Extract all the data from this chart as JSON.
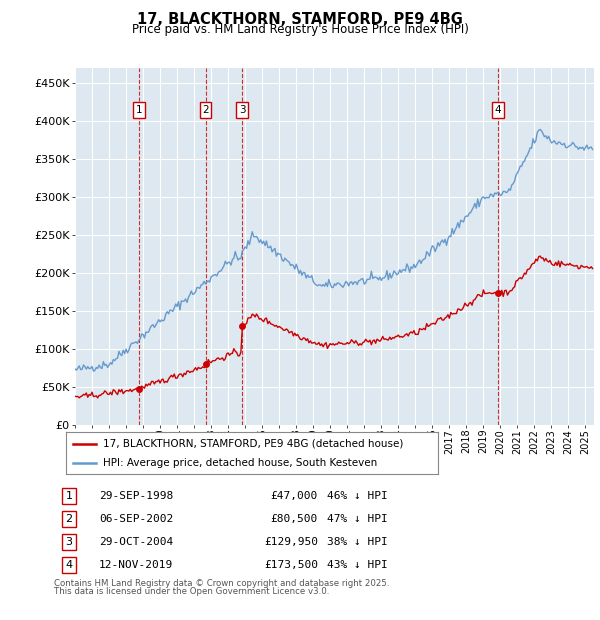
{
  "title": "17, BLACKTHORN, STAMFORD, PE9 4BG",
  "subtitle": "Price paid vs. HM Land Registry's House Price Index (HPI)",
  "footer1": "Contains HM Land Registry data © Crown copyright and database right 2025.",
  "footer2": "This data is licensed under the Open Government Licence v3.0.",
  "legend_house": "17, BLACKTHORN, STAMFORD, PE9 4BG (detached house)",
  "legend_hpi": "HPI: Average price, detached house, South Kesteven",
  "transactions": [
    {
      "num": 1,
      "date": "29-SEP-1998",
      "price": 47000,
      "pct": "46% ↓ HPI",
      "year": 1998.75
    },
    {
      "num": 2,
      "date": "06-SEP-2002",
      "price": 80500,
      "pct": "47% ↓ HPI",
      "year": 2002.67
    },
    {
      "num": 3,
      "date": "29-OCT-2004",
      "price": 129950,
      "pct": "38% ↓ HPI",
      "year": 2004.83
    },
    {
      "num": 4,
      "date": "12-NOV-2019",
      "price": 173500,
      "pct": "43% ↓ HPI",
      "year": 2019.87
    }
  ],
  "house_color": "#cc0000",
  "hpi_color": "#6699cc",
  "background_color": "#dde8f0",
  "plot_bg": "#ffffff",
  "ylim": [
    0,
    470000
  ],
  "yticks": [
    0,
    50000,
    100000,
    150000,
    200000,
    250000,
    300000,
    350000,
    400000,
    450000
  ],
  "xmin": 1995,
  "xmax": 2025.5
}
